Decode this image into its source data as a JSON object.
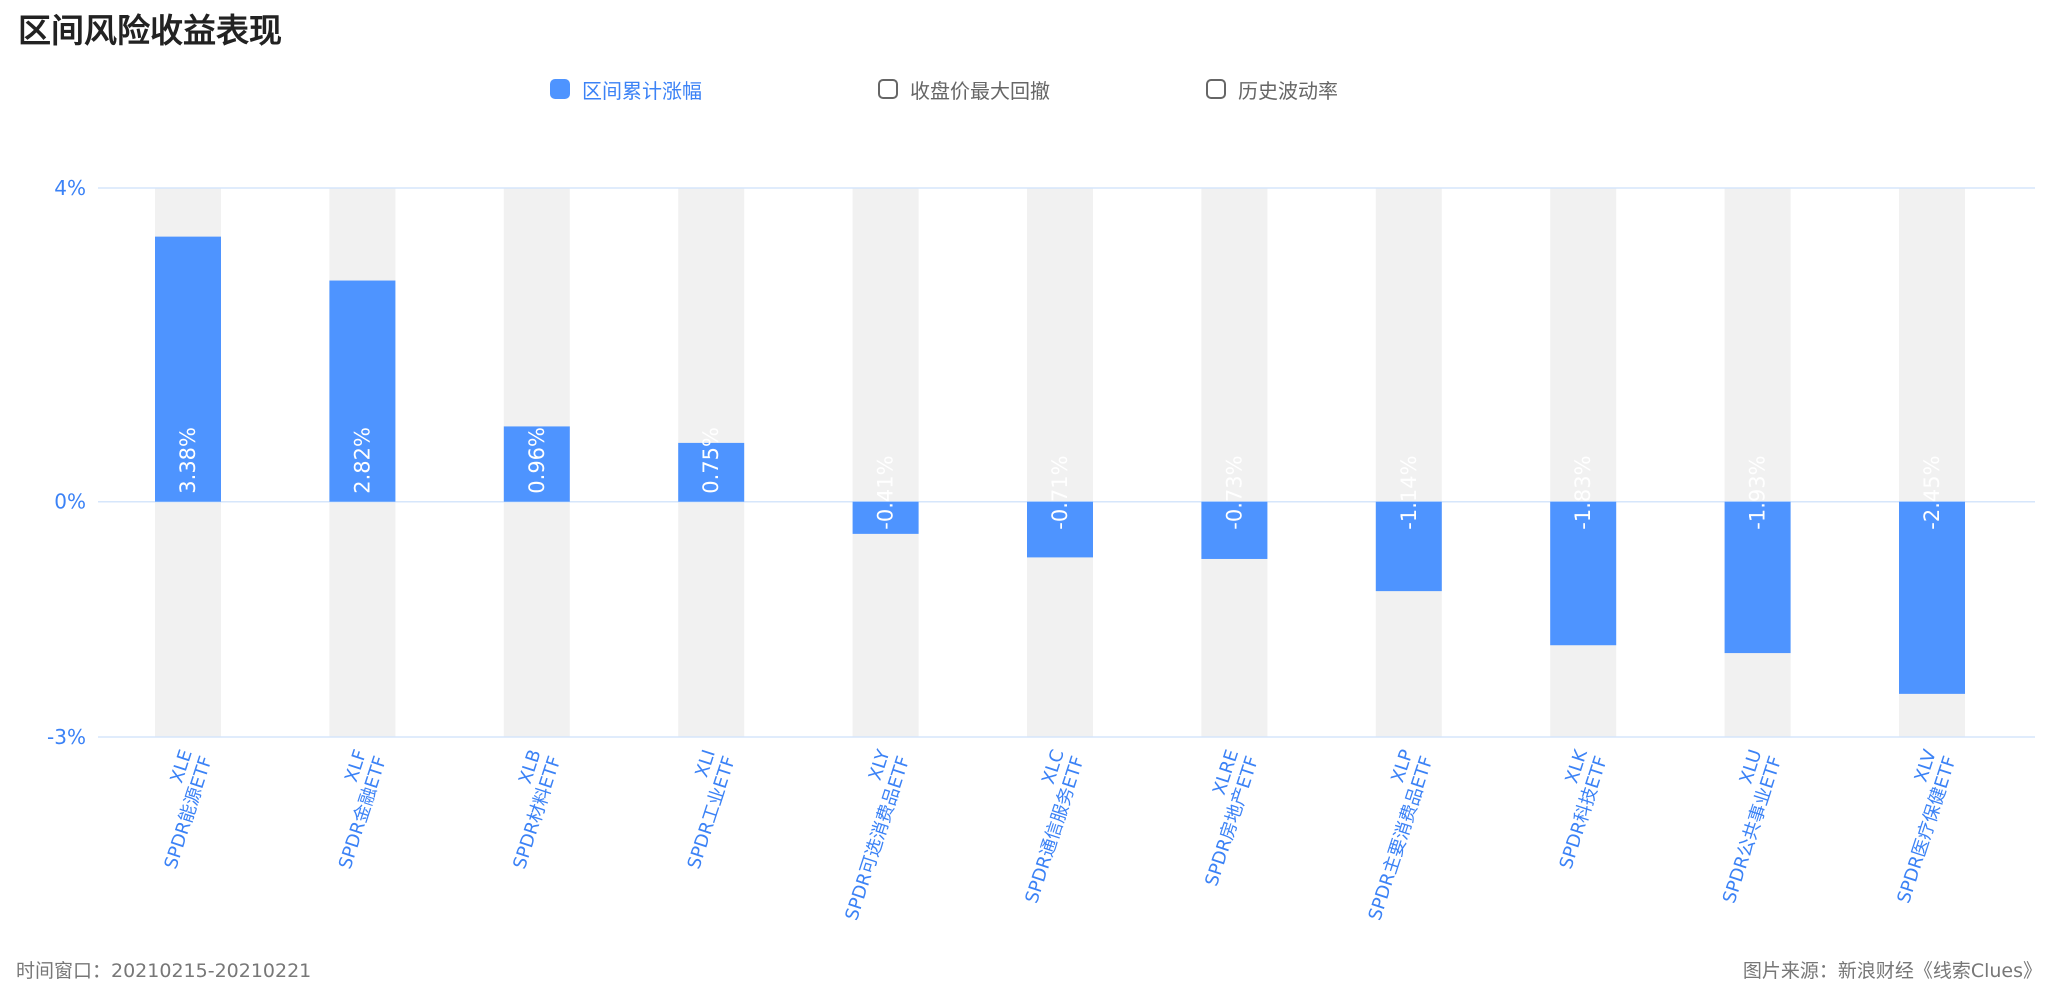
{
  "title": "区间风险收益表现",
  "legend": [
    {
      "label": "区间累计涨幅",
      "active": true
    },
    {
      "label": "收盘价最大回撤",
      "active": false
    },
    {
      "label": "历史波动率",
      "active": false
    }
  ],
  "footer": {
    "left": "时间窗口：20210215-20210221",
    "right": "图片来源：新浪财经《线索Clues》"
  },
  "colors": {
    "bar": "#4e94ff",
    "background_bar": "#f1f1f1",
    "axis_text": "#3b82f6",
    "grid": "#d6e6fb"
  },
  "chart_data": {
    "type": "bar",
    "ylim": [
      -3,
      4
    ],
    "yticks": [
      {
        "value": 4,
        "label": "4%"
      },
      {
        "value": 0,
        "label": "0%"
      },
      {
        "value": -3,
        "label": "-3%"
      }
    ],
    "categories": [
      {
        "code": "XLE",
        "name": "SPDR能源ETF"
      },
      {
        "code": "XLF",
        "name": "SPDR金融ETF"
      },
      {
        "code": "XLB",
        "name": "SPDR材料ETF"
      },
      {
        "code": "XLI",
        "name": "SPDR工业ETF"
      },
      {
        "code": "XLY",
        "name": "SPDR可选消费品ETF"
      },
      {
        "code": "XLC",
        "name": "SPDR通信服务ETF"
      },
      {
        "code": "XLRE",
        "name": "SPDR房地产ETF"
      },
      {
        "code": "XLP",
        "name": "SPDR主要消费品ETF"
      },
      {
        "code": "XLK",
        "name": "SPDR科技ETF"
      },
      {
        "code": "XLU",
        "name": "SPDR公共事业ETF"
      },
      {
        "code": "XLV",
        "name": "SPDR医疗保健ETF"
      }
    ],
    "values": [
      3.38,
      2.82,
      0.96,
      0.75,
      -0.41,
      -0.71,
      -0.73,
      -1.14,
      -1.83,
      -1.93,
      -2.45
    ],
    "value_labels": [
      "3.38%",
      "2.82%",
      "0.96%",
      "0.75%",
      "-0.41%",
      "-0.71%",
      "-0.73%",
      "-1.14%",
      "-1.83%",
      "-1.93%",
      "-2.45%"
    ]
  }
}
